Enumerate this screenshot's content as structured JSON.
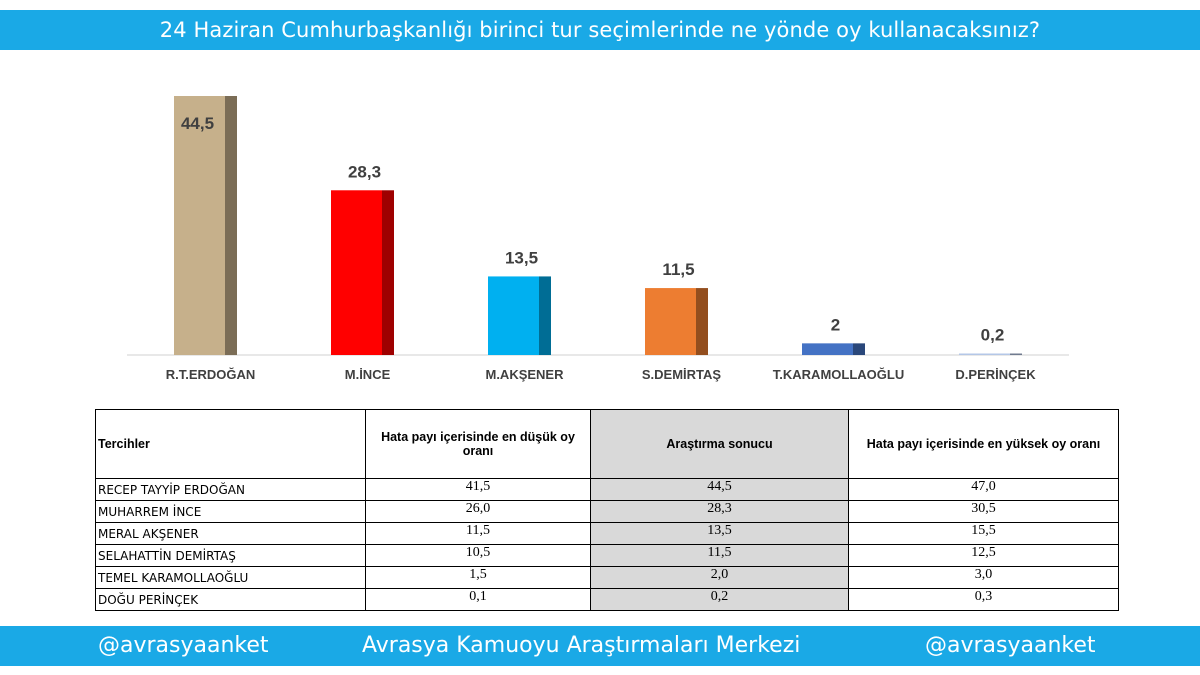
{
  "header": {
    "title": "24 Haziran Cumhurbaşkanlığı birinci tur seçimlerinde ne yönde oy kullanacaksınız?"
  },
  "chart_data": {
    "type": "bar",
    "title": "",
    "xlabel": "",
    "ylabel": "",
    "ylim": [
      0,
      46
    ],
    "grid": false,
    "categories": [
      "R.T.ERDOĞAN",
      "M.İNCE",
      "M.AKŞENER",
      "S.DEMİRTAŞ",
      "T.KARAMOLLAOĞLU",
      "D.PERİNÇEK"
    ],
    "values": [
      44.5,
      28.3,
      13.5,
      11.5,
      2,
      0.2
    ],
    "value_labels": [
      "44,5",
      "28,3",
      "13,5",
      "11,5",
      "2",
      "0,2"
    ],
    "colors": [
      "#c6b08b",
      "#ff0000",
      "#00b0f0",
      "#ed7d31",
      "#4472c4",
      "#b4c7e7"
    ]
  },
  "table": {
    "headers": [
      "Tercihler",
      "Hata payı içerisinde en düşük oy oranı",
      "Araştırma sonucu",
      "Hata payı içerisinde en yüksek oy oranı"
    ],
    "rows": [
      [
        "RECEP TAYYİP ERDOĞAN",
        "41,5",
        "44,5",
        "47,0"
      ],
      [
        "MUHARREM İNCE",
        "26,0",
        "28,3",
        "30,5"
      ],
      [
        "MERAL AKŞENER",
        "11,5",
        "13,5",
        "15,5"
      ],
      [
        "SELAHATTİN DEMİRTAŞ",
        "10,5",
        "11,5",
        "12,5"
      ],
      [
        "TEMEL KARAMOLLAOĞLU",
        "1,5",
        "2,0",
        "3,0"
      ],
      [
        "DOĞU PERİNÇEK",
        "0,1",
        "0,2",
        "0,3"
      ]
    ]
  },
  "footer": {
    "left": "@avrasyaanket",
    "center": "Avrasya Kamuoyu Araştırmaları Merkezi",
    "right": "@avrasyaanket"
  }
}
